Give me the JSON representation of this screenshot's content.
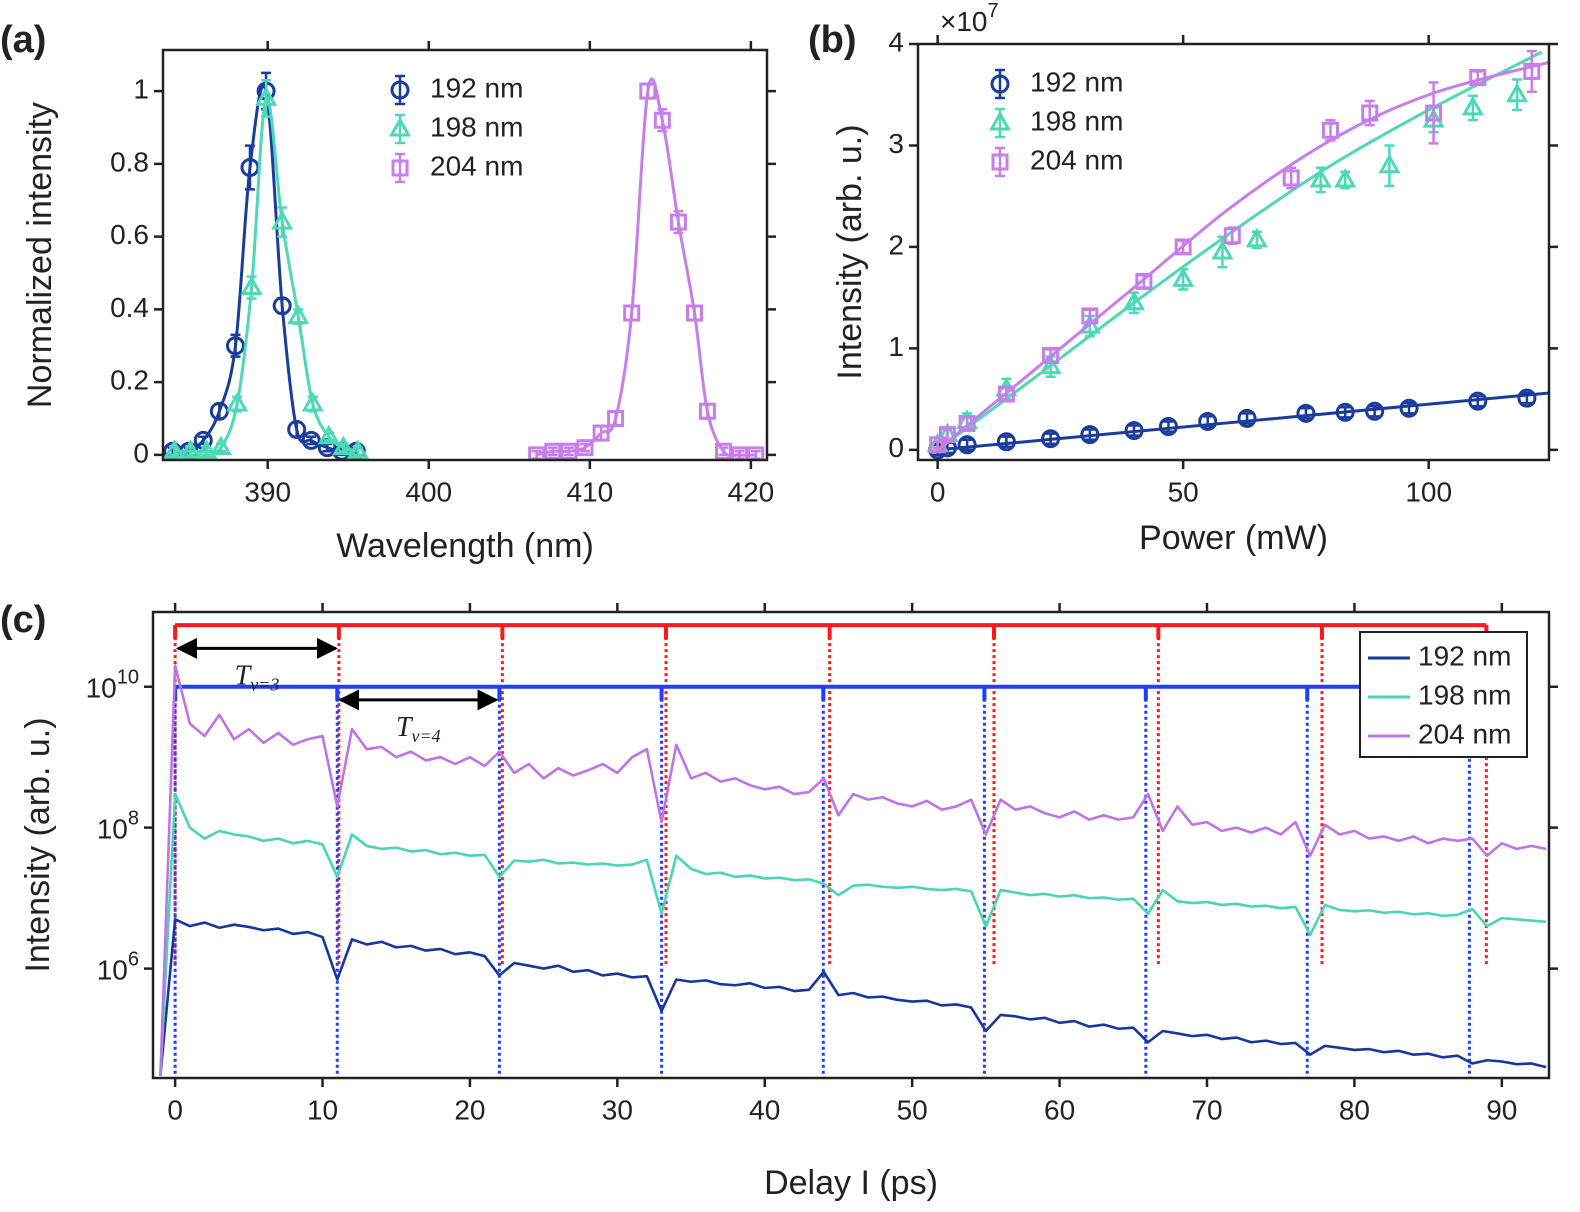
{
  "chart_data": [
    {
      "type": "scatter",
      "panel_label": "(a)",
      "xlabel": "Wavelength (nm)",
      "ylabel": "Normalized intensity",
      "xlim": [
        383.5,
        421
      ],
      "ylim": [
        -0.014,
        1.113
      ],
      "xticks": [
        390,
        400,
        410,
        420
      ],
      "yticks": [
        0,
        0.2,
        0.4,
        0.6,
        0.8,
        1
      ],
      "legend": "upper center",
      "smooth_line": true,
      "series": [
        {
          "name": "192 nm",
          "color": "#1a3c9c",
          "marker": "circle",
          "x": [
            384.1,
            385.1,
            386.0,
            387.0,
            388.0,
            388.9,
            389.9,
            390.9,
            391.8,
            392.7,
            393.7,
            394.6,
            395.5
          ],
          "values": [
            0.01,
            0.01,
            0.04,
            0.12,
            0.3,
            0.79,
            1.0,
            0.41,
            0.07,
            0.04,
            0.02,
            0.01,
            0.01
          ],
          "errors": [
            0.01,
            0.01,
            0.01,
            0.02,
            0.03,
            0.06,
            0.05,
            0.02,
            0.02,
            0.01,
            0.01,
            0.01,
            0.01
          ]
        },
        {
          "name": "198 nm",
          "color": "#4dd9b5",
          "marker": "triangle",
          "x": [
            384.2,
            385.2,
            386.2,
            387.1,
            388.1,
            389.0,
            389.9,
            390.9,
            391.9,
            392.8,
            393.8,
            394.7,
            395.6
          ],
          "values": [
            0.01,
            0.01,
            0.01,
            0.02,
            0.14,
            0.46,
            0.98,
            0.64,
            0.38,
            0.14,
            0.05,
            0.02,
            0.01
          ],
          "errors": [
            0.01,
            0.01,
            0.01,
            0.01,
            0.02,
            0.03,
            0.05,
            0.04,
            0.02,
            0.02,
            0.01,
            0.01,
            0.01
          ]
        },
        {
          "name": "204 nm",
          "color": "#c77ee8",
          "marker": "square",
          "x": [
            406.7,
            407.7,
            408.7,
            409.7,
            410.7,
            411.6,
            412.6,
            413.6,
            414.5,
            415.5,
            416.5,
            417.3,
            418.3,
            419.3,
            420.3
          ],
          "values": [
            0,
            0.01,
            0.01,
            0.02,
            0.06,
            0.1,
            0.39,
            1.0,
            0.92,
            0.64,
            0.39,
            0.12,
            0.01,
            0,
            0
          ],
          "errors": [
            0.01,
            0.01,
            0.01,
            0.01,
            0.02,
            0.02,
            0.02,
            0.02,
            0.03,
            0.03,
            0.02,
            0.02,
            0.01,
            0.01,
            0.01
          ]
        }
      ]
    },
    {
      "type": "scatter",
      "panel_label": "(b)",
      "xlabel": "Power (mW)",
      "ylabel": "Intensity (arb. u.)",
      "multiplier": {
        "base": "×10",
        "exponent": "7"
      },
      "xlim": [
        -4,
        124.5
      ],
      "ylim": [
        -0.1,
        4
      ],
      "xticks": [
        0,
        50,
        100
      ],
      "yticks": [
        0,
        1,
        2,
        3,
        4
      ],
      "legend": "upper left",
      "series": [
        {
          "name": "192 nm",
          "color": "#1a3c9c",
          "marker": "circle",
          "x": [
            0,
            2,
            6,
            14,
            23,
            31,
            40,
            47,
            55,
            63,
            75,
            83,
            89,
            96,
            110,
            120
          ],
          "values": [
            0,
            0.02,
            0.05,
            0.08,
            0.11,
            0.15,
            0.19,
            0.23,
            0.28,
            0.31,
            0.36,
            0.37,
            0.38,
            0.41,
            0.48,
            0.51
          ],
          "errors": [
            0.05,
            0.05,
            0.05,
            0.05,
            0.05,
            0.05,
            0.05,
            0.05,
            0.05,
            0.05,
            0.05,
            0.05,
            0.05,
            0.05,
            0.05,
            0.05
          ],
          "fit_x": [
            0,
            124.5
          ],
          "fit_y": [
            0,
            0.56
          ]
        },
        {
          "name": "198 nm",
          "color": "#4dd9b5",
          "marker": "triangle",
          "x": [
            0,
            2,
            6,
            14,
            23,
            31,
            40,
            50,
            58,
            65,
            78,
            83,
            92,
            101,
            109,
            118
          ],
          "values": [
            0.05,
            0.15,
            0.28,
            0.6,
            0.82,
            1.22,
            1.45,
            1.68,
            1.95,
            2.07,
            2.66,
            2.66,
            2.8,
            3.25,
            3.37,
            3.5
          ],
          "errors": [
            0.03,
            0.05,
            0.08,
            0.1,
            0.1,
            0.1,
            0.1,
            0.1,
            0.15,
            0.08,
            0.12,
            0.08,
            0.2,
            0.12,
            0.12,
            0.15
          ],
          "fit_x": [
            0,
            20,
            40,
            60,
            80,
            100,
            123
          ],
          "fit_y": [
            0,
            0.72,
            1.45,
            2.15,
            2.8,
            3.35,
            3.92
          ]
        },
        {
          "name": "204 nm",
          "color": "#c77ee8",
          "marker": "square",
          "x": [
            0,
            2,
            6,
            14,
            23,
            31,
            42,
            50,
            60,
            72,
            80,
            88,
            101,
            110,
            121
          ],
          "values": [
            0.05,
            0.15,
            0.26,
            0.55,
            0.93,
            1.32,
            1.66,
            2.0,
            2.11,
            2.68,
            3.15,
            3.32,
            3.32,
            3.67,
            3.73
          ],
          "errors": [
            0.03,
            0.05,
            0.06,
            0.06,
            0.06,
            0.06,
            0.06,
            0.06,
            0.08,
            0.1,
            0.1,
            0.12,
            0.3,
            0.06,
            0.2
          ],
          "fit_x": [
            0,
            20,
            40,
            60,
            80,
            100,
            124.5
          ],
          "fit_y": [
            0,
            0.8,
            1.6,
            2.4,
            3.05,
            3.5,
            3.82
          ]
        }
      ]
    },
    {
      "type": "line",
      "panel_label": "(c)",
      "xlabel": "Delay I (ps)",
      "ylabel": "Intensity (arb. u.)",
      "log_y": true,
      "xlim": [
        -1.5,
        93.2
      ],
      "ylim": [
        28000,
        115000000000
      ],
      "xticks": [
        0,
        10,
        20,
        30,
        40,
        50,
        60,
        70,
        80,
        90
      ],
      "yticks": [
        {
          "value": 1000000,
          "label": "10",
          "exponent": "6"
        },
        {
          "value": 100000000,
          "label": "10",
          "exponent": "8"
        },
        {
          "value": 10000000000,
          "label": "10",
          "exponent": "10"
        }
      ],
      "legend": "upper right",
      "x": [
        -1,
        0,
        1,
        2,
        3,
        4,
        5,
        6,
        7,
        8,
        9,
        10,
        11,
        12,
        13,
        14,
        15,
        16,
        17,
        18,
        19,
        20,
        21,
        22,
        23,
        24,
        25,
        26,
        27,
        28,
        29,
        30,
        31,
        32,
        33,
        34,
        35,
        36,
        37,
        38,
        39,
        40,
        41,
        42,
        43,
        44,
        45,
        46,
        47,
        48,
        49,
        50,
        51,
        52,
        53,
        54,
        55,
        56,
        57,
        58,
        59,
        60,
        61,
        62,
        63,
        64,
        65,
        66,
        67,
        68,
        69,
        70,
        71,
        72,
        73,
        74,
        75,
        76,
        77,
        78,
        79,
        80,
        81,
        82,
        83,
        84,
        85,
        86,
        87,
        88,
        89,
        90,
        91,
        92,
        93
      ],
      "series": [
        {
          "name": "192 nm",
          "color": "#17389a",
          "values": [
            30000.0,
            5000000.0,
            4000000.0,
            4500000.0,
            3800000.0,
            4200000.0,
            3900000.0,
            3500000.0,
            3700000.0,
            3100000.0,
            3300000.0,
            2800000.0,
            700000.0,
            2600000.0,
            2200000.0,
            2400000.0,
            2000000.0,
            2100000.0,
            1800000.0,
            1900000.0,
            1600000.0,
            1700000.0,
            1500000.0,
            800000.0,
            1200000.0,
            1100000.0,
            1000000.0,
            1100000.0,
            900000.0,
            950000.0,
            800000.0,
            850000.0,
            750000.0,
            780000.0,
            250000.0,
            700000.0,
            650000.0,
            680000.0,
            600000.0,
            580000.0,
            620000.0,
            530000.0,
            550000.0,
            480000.0,
            500000.0,
            900000.0,
            420000.0,
            450000.0,
            390000.0,
            400000.0,
            360000.0,
            340000.0,
            350000.0,
            300000.0,
            310000.0,
            280000.0,
            130000.0,
            220000.0,
            210000.0,
            190000.0,
            200000.0,
            170000.0,
            180000.0,
            150000.0,
            160000.0,
            140000.0,
            145000.0,
            90000.0,
            130000.0,
            120000.0,
            110000.0,
            115000.0,
            100000.0,
            105000.0,
            90000.0,
            95000.0,
            85000.0,
            88000.0,
            60000.0,
            80000.0,
            75000.0,
            70000.0,
            72000.0,
            65000.0,
            68000.0,
            60000.0,
            62000.0,
            55000.0,
            58000.0,
            45000.0,
            50000.0,
            48000.0,
            44000.0,
            45000.0,
            40000.0
          ]
        },
        {
          "name": "198 nm",
          "color": "#48d6b4",
          "values": [
            30000.0,
            300000000.0,
            100000000.0,
            70000000.0,
            90000000.0,
            80000000.0,
            75000000.0,
            65000000.0,
            70000000.0,
            60000000.0,
            65000000.0,
            58000000.0,
            20000000.0,
            80000000.0,
            55000000.0,
            50000000.0,
            52000000.0,
            46000000.0,
            48000000.0,
            42000000.0,
            44000000.0,
            40000000.0,
            41000000.0,
            20000000.0,
            34000000.0,
            33000000.0,
            35000000.0,
            31000000.0,
            32000000.0,
            30000000.0,
            31000000.0,
            29000000.0,
            30000000.0,
            35000000.0,
            6000000.0,
            40000000.0,
            26000000.0,
            22000000.0,
            23000000.0,
            20000000.0,
            21000000.0,
            19000000.0,
            19500000.0,
            18000000.0,
            18500000.0,
            16000000.0,
            11000000.0,
            15000000.0,
            15500000.0,
            14500000.0,
            14000000.0,
            14500000.0,
            13500000.0,
            13000000.0,
            13500000.0,
            12500000.0,
            4000000.0,
            13000000.0,
            12000000.0,
            11000000.0,
            11500000.0,
            10500000.0,
            11000000.0,
            10000000.0,
            10200000.0,
            9500000.0,
            9800000.0,
            6000000.0,
            13000000.0,
            9000000.0,
            8500000.0,
            8800000.0,
            8000000.0,
            8300000.0,
            7600000.0,
            7800000.0,
            7200000.0,
            7500000.0,
            3000000.0,
            8000000.0,
            6800000.0,
            6500000.0,
            6700000.0,
            6200000.0,
            6400000.0,
            5900000.0,
            6100000.0,
            5600000.0,
            5800000.0,
            7000000.0,
            4000000.0,
            5200000.0,
            5000000.0,
            4800000.0,
            4600000.0
          ]
        },
        {
          "name": "204 nm",
          "color": "#bf74e6",
          "values": [
            30000.0,
            20000000000.0,
            3000000000.0,
            2000000000.0,
            4000000000.0,
            1800000000.0,
            2500000000.0,
            1600000000.0,
            2200000000.0,
            1500000000.0,
            1800000000.0,
            2000000000.0,
            200000000.0,
            2500000000.0,
            1300000000.0,
            1400000000.0,
            1000000000.0,
            1200000000.0,
            900000000.0,
            1000000000.0,
            800000000.0,
            1000000000.0,
            750000000.0,
            1200000000.0,
            600000000.0,
            800000000.0,
            500000000.0,
            700000000.0,
            550000000.0,
            650000000.0,
            800000000.0,
            600000000.0,
            1000000000.0,
            1300000000.0,
            120000000.0,
            1500000000.0,
            500000000.0,
            600000000.0,
            450000000.0,
            500000000.0,
            400000000.0,
            350000000.0,
            380000000.0,
            300000000.0,
            320000000.0,
            500000000.0,
            150000000.0,
            300000000.0,
            250000000.0,
            270000000.0,
            220000000.0,
            200000000.0,
            240000000.0,
            180000000.0,
            200000000.0,
            250000000.0,
            80000000.0,
            250000000.0,
            180000000.0,
            200000000.0,
            160000000.0,
            140000000.0,
            170000000.0,
            130000000.0,
            150000000.0,
            130000000.0,
            140000000.0,
            300000000.0,
            90000000.0,
            200000000.0,
            110000000.0,
            120000000.0,
            90000000.0,
            100000000.0,
            85000000.0,
            100000000.0,
            80000000.0,
            120000000.0,
            40000000.0,
            110000000.0,
            80000000.0,
            90000000.0,
            70000000.0,
            75000000.0,
            65000000.0,
            75000000.0,
            60000000.0,
            70000000.0,
            65000000.0,
            70000000.0,
            40000000.0,
            60000000.0,
            50000000.0,
            55000000.0,
            50000000.0
          ]
        }
      ],
      "revivals": [
        {
          "color": "#ff1a1a",
          "label": "T",
          "subscript": "v=3",
          "level": 75000000000,
          "bottom": 1100000,
          "positions": [
            0,
            11.11,
            22.2,
            33.3,
            44.4,
            55.55,
            66.7,
            77.8,
            88.95
          ],
          "arrow": {
            "from": 0,
            "to": 11.11,
            "level": 35000000000
          }
        },
        {
          "color": "#1f3fff",
          "label": "T",
          "subscript": "v=4",
          "level": 10000000000,
          "bottom": 28000,
          "positions": [
            0,
            11.0,
            22.0,
            33.0,
            43.97,
            54.9,
            65.85,
            76.8,
            87.8
          ],
          "arrow": {
            "from": 11.0,
            "to": 22.0,
            "level": 6500000000
          }
        }
      ]
    }
  ]
}
